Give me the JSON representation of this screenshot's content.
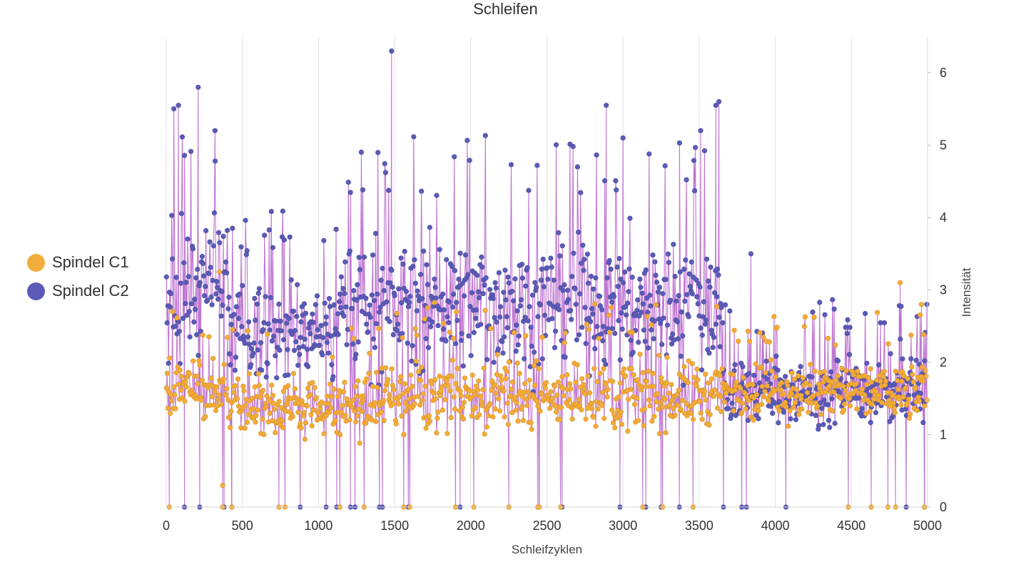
{
  "chart_data": {
    "type": "line",
    "title": "Schleifen",
    "xlabel": "Schleifzyklen",
    "ylabel": "Intensität",
    "xlim": [
      0,
      5000
    ],
    "ylim": [
      0,
      6.4
    ],
    "x_ticks": [
      "0",
      "500",
      "1000",
      "1500",
      "2000",
      "2500",
      "3000",
      "3500",
      "4000",
      "4500",
      "5000"
    ],
    "y_ticks": [
      "0",
      "1",
      "2",
      "3",
      "4",
      "5",
      "6"
    ],
    "grid": "vertical",
    "legend_position": "left",
    "line_color": "#b866cc",
    "series": [
      {
        "name": "Spindel C1",
        "color": "#f2ac3a",
        "description_level_segments": [
          {
            "x_start": 0,
            "x_end": 400,
            "mean": 1.6,
            "spread": 0.35
          },
          {
            "x_start": 400,
            "x_end": 1400,
            "mean": 1.4,
            "spread": 0.35
          },
          {
            "x_start": 1400,
            "x_end": 3660,
            "mean": 1.55,
            "spread": 0.4
          },
          {
            "x_start": 3660,
            "x_end": 5000,
            "mean": 1.6,
            "spread": 0.35
          }
        ],
        "notable_points": [
          {
            "x": 350,
            "y": 3.25
          },
          {
            "x": 370,
            "y": 0.3
          },
          {
            "x": 4820,
            "y": 3.1
          },
          {
            "x": 4960,
            "y": 2.8
          }
        ]
      },
      {
        "name": "Spindel C2",
        "color": "#5b5bb7",
        "description_level_segments": [
          {
            "x_start": 0,
            "x_end": 400,
            "mean": 3.0,
            "spread": 0.8
          },
          {
            "x_start": 400,
            "x_end": 1100,
            "mean": 2.4,
            "spread": 0.6
          },
          {
            "x_start": 1100,
            "x_end": 3660,
            "mean": 2.8,
            "spread": 0.75
          },
          {
            "x_start": 3660,
            "x_end": 5000,
            "mean": 1.6,
            "spread": 0.4
          }
        ],
        "notable_points": [
          {
            "x": 80,
            "y": 5.55
          },
          {
            "x": 210,
            "y": 5.8
          },
          {
            "x": 320,
            "y": 5.2
          },
          {
            "x": 1480,
            "y": 6.3
          },
          {
            "x": 2890,
            "y": 5.55
          },
          {
            "x": 3000,
            "y": 5.1
          },
          {
            "x": 3510,
            "y": 5.2
          },
          {
            "x": 3610,
            "y": 5.55
          },
          {
            "x": 3630,
            "y": 5.6
          },
          {
            "x": 3840,
            "y": 3.5
          }
        ],
        "zero_drop_x": [
          120,
          220,
          380,
          430,
          880,
          1050,
          1120,
          1210,
          1240,
          1400,
          1420,
          1590,
          1930,
          2450,
          2600,
          2980,
          3150,
          3250,
          3370,
          3660,
          3780,
          3810,
          4070,
          4860,
          4980
        ]
      }
    ],
    "c1_zero_drop_x": [
      20,
      370,
      430,
      740,
      780,
      1140,
      1300,
      1560,
      1600,
      1900,
      2020,
      2250,
      2440,
      2450,
      2590,
      3130,
      3260,
      3460,
      4480,
      4630,
      4740,
      4790,
      4980
    ]
  }
}
